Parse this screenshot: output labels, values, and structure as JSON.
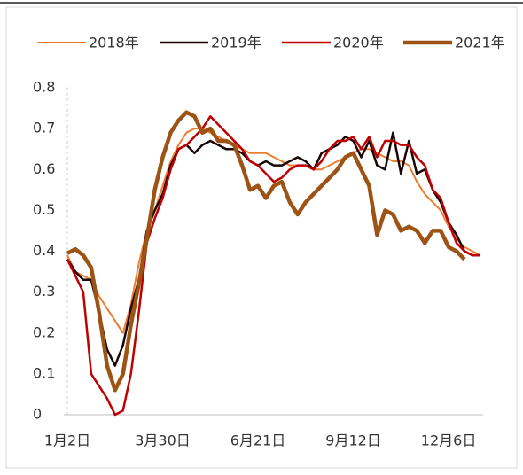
{
  "chart_data": {
    "type": "line",
    "categories": [
      "1月2日",
      null,
      null,
      null,
      null,
      null,
      null,
      null,
      null,
      null,
      null,
      null,
      "3月30日",
      null,
      null,
      null,
      null,
      null,
      null,
      null,
      null,
      null,
      null,
      null,
      "6月21日",
      null,
      null,
      null,
      null,
      null,
      null,
      null,
      null,
      null,
      null,
      null,
      "9月12日",
      null,
      null,
      null,
      null,
      null,
      null,
      null,
      null,
      null,
      null,
      null,
      "12月6日",
      null,
      null,
      null,
      null
    ],
    "ylim": [
      0,
      0.8
    ],
    "yticks": [
      0,
      0.1,
      0.2,
      0.3,
      0.4,
      0.5,
      0.6,
      0.7,
      0.8
    ],
    "series": [
      {
        "name": "2018年",
        "color": "#ED7D31",
        "line_width": 2,
        "values": [
          0.39,
          0.35,
          0.34,
          0.33,
          0.29,
          0.26,
          0.23,
          0.2,
          0.27,
          0.37,
          0.45,
          0.5,
          0.56,
          0.62,
          0.66,
          0.69,
          0.7,
          0.7,
          0.69,
          0.68,
          0.67,
          0.66,
          0.65,
          0.64,
          0.64,
          0.64,
          0.63,
          0.62,
          0.61,
          0.61,
          0.61,
          0.6,
          0.6,
          0.61,
          0.62,
          0.63,
          0.64,
          0.65,
          0.65,
          0.64,
          0.63,
          0.62,
          0.62,
          0.61,
          0.57,
          0.54,
          0.52,
          0.5,
          0.46,
          0.43,
          0.41,
          0.4,
          0.39
        ]
      },
      {
        "name": "2019年",
        "color": "#1A0606",
        "line_width": 2.5,
        "values": [
          0.38,
          0.35,
          0.33,
          0.33,
          0.25,
          0.16,
          0.12,
          0.17,
          0.26,
          0.33,
          0.45,
          0.5,
          0.54,
          0.61,
          0.65,
          0.66,
          0.64,
          0.66,
          0.67,
          0.66,
          0.65,
          0.65,
          0.64,
          0.62,
          0.61,
          0.62,
          0.61,
          0.61,
          0.62,
          0.63,
          0.62,
          0.6,
          0.64,
          0.65,
          0.66,
          0.68,
          0.67,
          0.63,
          0.67,
          0.61,
          0.6,
          0.69,
          0.59,
          0.67,
          0.59,
          0.6,
          0.55,
          0.52,
          0.47,
          0.44,
          0.4,
          0.39,
          0.39
        ]
      },
      {
        "name": "2020年",
        "color": "#C00000",
        "line_width": 2.5,
        "values": [
          0.38,
          0.34,
          0.3,
          0.1,
          0.07,
          0.04,
          0.0,
          0.01,
          0.1,
          0.25,
          0.42,
          0.48,
          0.53,
          0.6,
          0.65,
          0.66,
          0.68,
          0.7,
          0.73,
          0.71,
          0.69,
          0.67,
          0.65,
          0.62,
          0.61,
          0.59,
          0.57,
          0.58,
          0.6,
          0.61,
          0.61,
          0.6,
          0.62,
          0.65,
          0.67,
          0.67,
          0.68,
          0.65,
          0.68,
          0.63,
          0.67,
          0.67,
          0.66,
          0.66,
          0.63,
          0.61,
          0.55,
          0.53,
          0.47,
          0.42,
          0.4,
          0.39,
          0.39
        ]
      },
      {
        "name": "2021年",
        "color": "#9C5314",
        "line_width": 4.5,
        "values": [
          0.395,
          0.405,
          0.39,
          0.36,
          0.25,
          0.12,
          0.06,
          0.1,
          0.22,
          0.32,
          0.43,
          0.55,
          0.63,
          0.69,
          0.72,
          0.74,
          0.73,
          0.69,
          0.7,
          0.67,
          0.67,
          0.66,
          0.61,
          0.55,
          0.56,
          0.53,
          0.56,
          0.57,
          0.52,
          0.49,
          0.52,
          0.54,
          0.56,
          0.58,
          0.6,
          0.63,
          0.64,
          0.6,
          0.56,
          0.44,
          0.5,
          0.49,
          0.45,
          0.46,
          0.45,
          0.42,
          0.45,
          0.45,
          0.41,
          0.4,
          0.38,
          null,
          null
        ]
      }
    ]
  }
}
